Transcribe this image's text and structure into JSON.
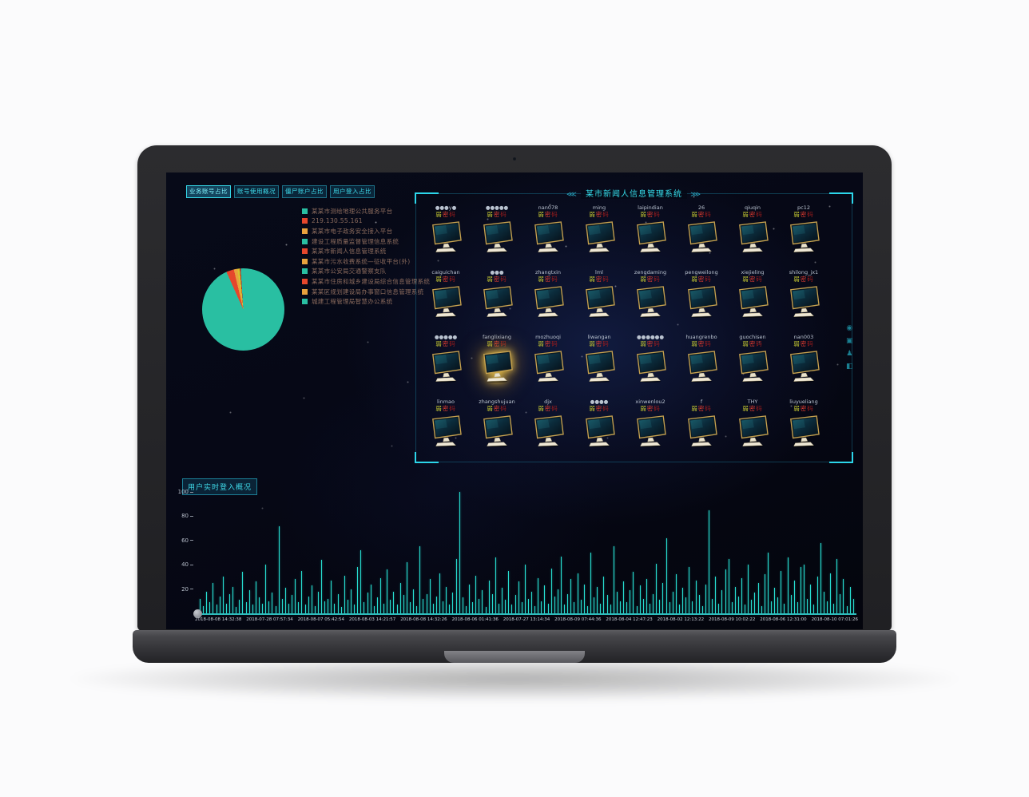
{
  "tabs": [
    {
      "label": "业务账号占比",
      "active": true
    },
    {
      "label": "账号使用概况",
      "active": false
    },
    {
      "label": "僵尸账户占比",
      "active": false
    },
    {
      "label": "用户登入占比",
      "active": false
    }
  ],
  "legend": {
    "items": [
      {
        "color": "#29bfa2",
        "label": "某某市测绘地理公共服务平台"
      },
      {
        "color": "#e5472c",
        "label": "219.130.55.161"
      },
      {
        "color": "#e8a23d",
        "label": "某某市电子政务安全接入平台"
      },
      {
        "color": "#29bfa2",
        "label": "建设工程质量监督管理信息系统"
      },
      {
        "color": "#e5472c",
        "label": "某某市新闻人信息管理系统"
      },
      {
        "color": "#e8a23d",
        "label": "某某市污水收费系统—征收平台(外)"
      },
      {
        "color": "#29bfa2",
        "label": "某某市公安局交通警察支队"
      },
      {
        "color": "#e5472c",
        "label": "某某市住房和城乡建设局综合信息管理系统"
      },
      {
        "color": "#e8a23d",
        "label": "某某区规划建设局办事窗口信息管理系统"
      },
      {
        "color": "#29bfa2",
        "label": "城建工程管理局智慧办公系统"
      }
    ]
  },
  "monitor_panel": {
    "title": "某市新闻人信息管理系统",
    "arrow_left": "⋘",
    "arrow_right": "⋙",
    "password_label": {
      "chars": [
        "弱",
        "密",
        "码"
      ]
    },
    "users": [
      {
        "name": "●●●y●",
        "highlight": false
      },
      {
        "name": "●●●●●",
        "highlight": false
      },
      {
        "name": "nan078",
        "highlight": false
      },
      {
        "name": "ming",
        "highlight": false
      },
      {
        "name": "laipindian",
        "highlight": false
      },
      {
        "name": "26",
        "highlight": false
      },
      {
        "name": "qiuqin",
        "highlight": false
      },
      {
        "name": "pc12",
        "highlight": false
      },
      {
        "name": "caiguichan",
        "highlight": false
      },
      {
        "name": "●●●",
        "highlight": false
      },
      {
        "name": "zhangtxin",
        "highlight": false
      },
      {
        "name": "lml",
        "highlight": false
      },
      {
        "name": "zengdaming",
        "highlight": false
      },
      {
        "name": "pengweilong",
        "highlight": false
      },
      {
        "name": "xiejieling",
        "highlight": false
      },
      {
        "name": "shilong_jx1",
        "highlight": false
      },
      {
        "name": "●●●●●",
        "highlight": false
      },
      {
        "name": "fanglixiang",
        "highlight": true
      },
      {
        "name": "mozhuoqi",
        "highlight": false
      },
      {
        "name": "liwangan",
        "highlight": false
      },
      {
        "name": "●●●●●●",
        "highlight": false
      },
      {
        "name": "huangrenbo",
        "highlight": false
      },
      {
        "name": "guochisen",
        "highlight": false
      },
      {
        "name": "nan003",
        "highlight": false
      },
      {
        "name": "linmao",
        "highlight": false
      },
      {
        "name": "zhangshujuan",
        "highlight": false
      },
      {
        "name": "djx",
        "highlight": false
      },
      {
        "name": "●●●●",
        "highlight": false
      },
      {
        "name": "xinwenlou2",
        "highlight": false
      },
      {
        "name": "f",
        "highlight": false
      },
      {
        "name": "THY",
        "highlight": false
      },
      {
        "name": "liuyueliang",
        "highlight": false
      }
    ]
  },
  "side_icons": [
    {
      "name": "eye-icon",
      "glyph": "◉"
    },
    {
      "name": "grid-icon",
      "glyph": "▣"
    },
    {
      "name": "user-icon",
      "glyph": "♟"
    },
    {
      "name": "lock-icon",
      "glyph": "◧"
    }
  ],
  "chart_data": [
    {
      "type": "pie",
      "title": "业务账号占比",
      "legend_position": "top-right-list",
      "slices": [
        {
          "color": "#29bfa2",
          "value": 93.3
        },
        {
          "color": "#e5472c",
          "value": 3.0
        },
        {
          "color": "#e8a23d",
          "value": 1.4
        },
        {
          "color": "#d4c52e",
          "value": 0.9
        },
        {
          "color": "#c0281e",
          "value": 0.4
        },
        {
          "color": "#29bfa2",
          "value": 1.0
        }
      ]
    },
    {
      "type": "bar",
      "title": "用户实时登入概况",
      "bar_color": "#27ddd0",
      "ylim": [
        0,
        100
      ],
      "y_ticks": [
        100,
        80,
        60,
        40,
        20
      ],
      "x_labels": [
        "2018-08-08 14:32:38",
        "2018-07-28 07:57:34",
        "2018-08-07 05:42:54",
        "2018-08-03 14:21:57",
        "2018-08-08 14:32:26",
        "2018-08-06 01:41:36",
        "2018-07-27 13:14:34",
        "2018-08-09 07:44:36",
        "2018-08-04 12:47:23",
        "2018-08-02 12:13:22",
        "2018-08-09 10:02:22",
        "2018-08-06 12:31:00",
        "2018-08-10 07:01:26"
      ],
      "values": [
        12,
        6,
        18,
        9,
        25,
        7,
        14,
        30,
        8,
        16,
        22,
        5,
        11,
        34,
        9,
        19,
        7,
        26,
        13,
        8,
        40,
        10,
        17,
        6,
        72,
        12,
        21,
        8,
        15,
        28,
        9,
        35,
        7,
        14,
        23,
        6,
        18,
        44,
        10,
        12,
        27,
        8,
        16,
        5,
        31,
        11,
        20,
        7,
        38,
        52,
        9,
        17,
        24,
        6,
        13,
        29,
        8,
        36,
        11,
        18,
        7,
        25,
        15,
        42,
        9,
        20,
        6,
        55,
        12,
        16,
        28,
        8,
        14,
        33,
        10,
        22,
        7,
        17,
        45,
        100,
        13,
        6,
        24,
        9,
        31,
        12,
        19,
        5,
        27,
        16,
        46,
        8,
        21,
        11,
        35,
        7,
        15,
        26,
        9,
        40,
        12,
        18,
        6,
        29,
        10,
        23,
        8,
        37,
        14,
        20,
        47,
        7,
        16,
        28,
        9,
        33,
        11,
        24,
        6,
        50,
        13,
        22,
        8,
        30,
        15,
        7,
        55,
        18,
        10,
        26,
        9,
        19,
        34,
        6,
        23,
        12,
        28,
        8,
        16,
        41,
        11,
        25,
        62,
        9,
        18,
        32,
        7,
        21,
        13,
        38,
        10,
        27,
        15,
        6,
        24,
        85,
        12,
        30,
        8,
        19,
        36,
        45,
        9,
        22,
        14,
        29,
        7,
        40,
        11,
        17,
        25,
        6,
        32,
        50,
        10,
        21,
        13,
        35,
        8,
        46,
        15,
        27,
        9,
        38,
        40,
        12,
        24,
        7,
        30,
        58,
        18,
        10,
        33,
        8,
        45,
        16,
        28,
        6,
        22,
        12
      ]
    }
  ]
}
